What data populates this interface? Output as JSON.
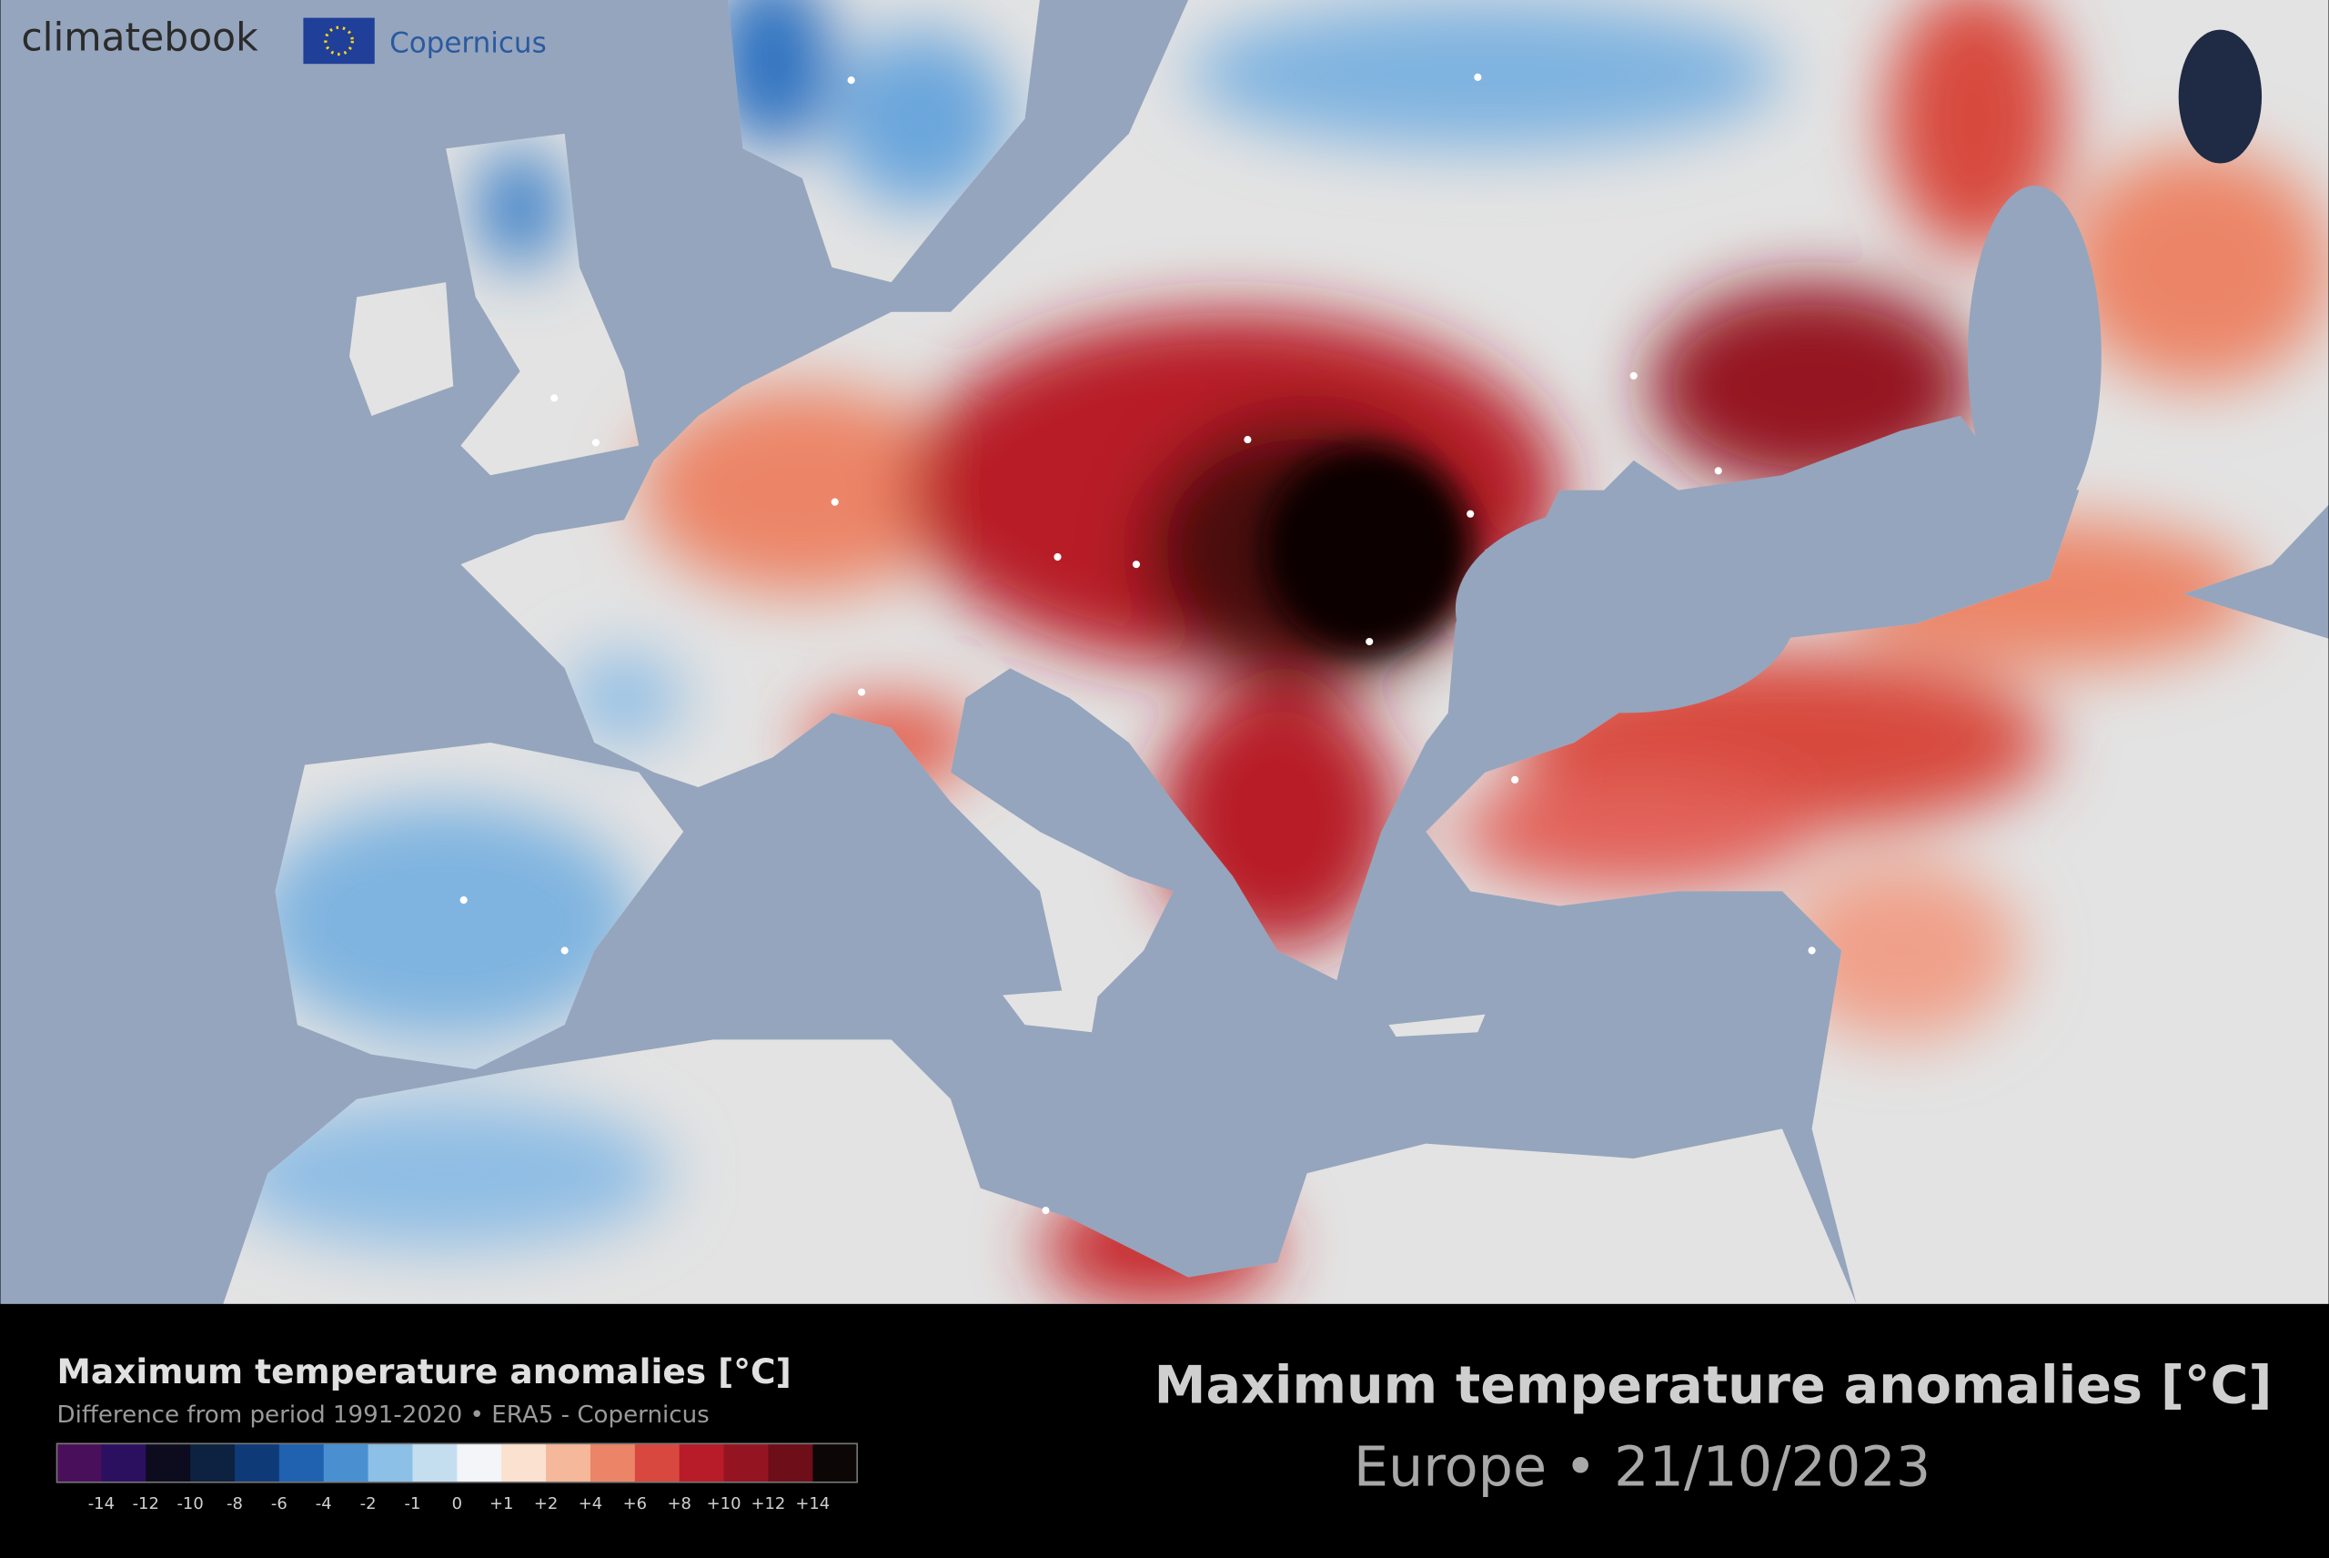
{
  "logo": {
    "text": "climatebook",
    "partner": "Copernicus"
  },
  "legend": {
    "title": "Maximum temperature anomalies [°C]",
    "subtitle": "Difference from period 1991-2020 • ERA5 - Copernicus",
    "labels": [
      "-14",
      "-12",
      "-10",
      "-8",
      "-6",
      "-4",
      "-2",
      "-1",
      "0",
      "+1",
      "+2",
      "+4",
      "+6",
      "+8",
      "+10",
      "+12",
      "+14"
    ],
    "colors": [
      "#4a0f5a",
      "#2c1060",
      "#0c0c1e",
      "#0d2140",
      "#0e3a78",
      "#2062b0",
      "#4a90d0",
      "#8cc0e6",
      "#c4def0",
      "#f3f5f8",
      "#fbe1d0",
      "#f6b89a",
      "#ec8568",
      "#d8483e",
      "#b81c28",
      "#951422",
      "#6e0e18",
      "#0d0606"
    ]
  },
  "header": {
    "title": "Maximum temperature anomalies [°C]",
    "subtitle": "Europe • 21/10/2023"
  }
}
